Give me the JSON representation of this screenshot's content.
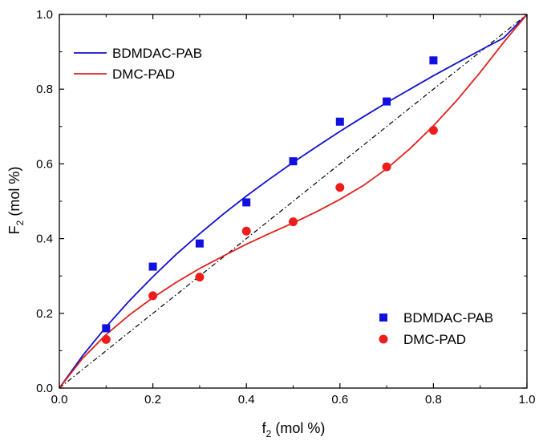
{
  "chart_data": {
    "type": "scatter",
    "xlabel": {
      "main": "f",
      "sub": "2",
      "unit": " (mol %)"
    },
    "ylabel": {
      "main": "F",
      "sub": "2",
      "unit": " (mol %)"
    },
    "xlim": [
      0.0,
      1.0
    ],
    "ylim": [
      0.0,
      1.0
    ],
    "x_ticks": [
      "0.0",
      "0.2",
      "0.4",
      "0.6",
      "0.8",
      "1.0"
    ],
    "y_ticks": [
      "0.0",
      "0.2",
      "0.4",
      "0.6",
      "0.8",
      "1.0"
    ],
    "grid": false,
    "lines": [
      {
        "name": "BDMDAC-PAB",
        "color": "#1010cc",
        "x": [
          0,
          0.05,
          0.1,
          0.15,
          0.2,
          0.25,
          0.3,
          0.35,
          0.4,
          0.45,
          0.5,
          0.55,
          0.6,
          0.65,
          0.7,
          0.75,
          0.8,
          0.85,
          0.9,
          0.95,
          1.0
        ],
        "y": [
          0,
          0.087,
          0.164,
          0.234,
          0.298,
          0.358,
          0.413,
          0.465,
          0.514,
          0.56,
          0.604,
          0.646,
          0.687,
          0.726,
          0.764,
          0.8,
          0.836,
          0.87,
          0.904,
          0.937,
          1.0
        ]
      },
      {
        "name": "DMC-PAD",
        "color": "#e0201a",
        "x": [
          0,
          0.05,
          0.1,
          0.15,
          0.2,
          0.25,
          0.3,
          0.35,
          0.4,
          0.45,
          0.5,
          0.55,
          0.6,
          0.65,
          0.7,
          0.75,
          0.8,
          0.85,
          0.9,
          0.95,
          1.0
        ],
        "y": [
          0,
          0.08,
          0.143,
          0.196,
          0.242,
          0.283,
          0.32,
          0.353,
          0.385,
          0.414,
          0.442,
          0.472,
          0.505,
          0.542,
          0.587,
          0.641,
          0.702,
          0.77,
          0.845,
          0.925,
          1.0
        ]
      }
    ],
    "series": [
      {
        "name": "BDMDAC-PAB",
        "marker": "square",
        "color": "#1010e0",
        "x": [
          0.1,
          0.2,
          0.3,
          0.4,
          0.5,
          0.6,
          0.7,
          0.8
        ],
        "y": [
          0.16,
          0.325,
          0.387,
          0.497,
          0.607,
          0.713,
          0.767,
          0.877
        ]
      },
      {
        "name": "DMC-PAD",
        "marker": "circle",
        "color": "#ee1c1c",
        "x": [
          0.1,
          0.2,
          0.3,
          0.4,
          0.5,
          0.6,
          0.7,
          0.8
        ],
        "y": [
          0.13,
          0.247,
          0.297,
          0.42,
          0.445,
          0.537,
          0.592,
          0.69
        ]
      }
    ],
    "reference_line": {
      "style": "dash-dot",
      "color": "#000000",
      "x": [
        0,
        1
      ],
      "y": [
        0,
        1
      ]
    },
    "legends": [
      {
        "placement": "top-left",
        "entries": [
          {
            "label": "BDMDAC-PAB",
            "kind": "line",
            "color": "#1010cc"
          },
          {
            "label": "DMC-PAD",
            "kind": "line",
            "color": "#e0201a"
          }
        ]
      },
      {
        "placement": "bottom-right",
        "entries": [
          {
            "label": "BDMDAC-PAB",
            "kind": "square",
            "color": "#1010e0"
          },
          {
            "label": "DMC-PAD",
            "kind": "circle",
            "color": "#ee1c1c"
          }
        ]
      }
    ]
  }
}
